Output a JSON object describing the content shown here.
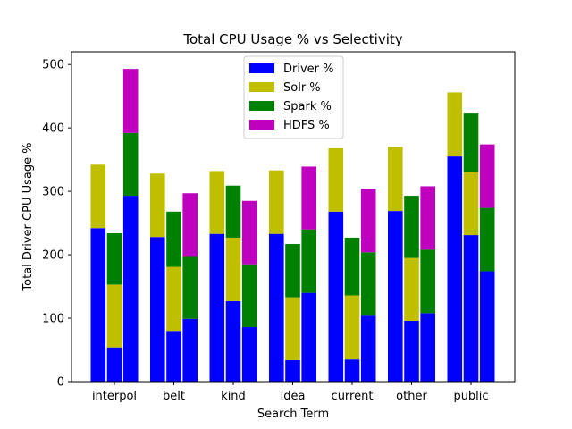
{
  "chart_data": {
    "type": "bar",
    "stacked": true,
    "title": "Total CPU Usage % vs Selectivity",
    "xlabel": "Search Term",
    "ylabel": "Total Driver CPU Usage %",
    "ylim": [
      0,
      520
    ],
    "yticks": [
      0,
      100,
      200,
      300,
      400,
      500
    ],
    "categories": [
      "interpol",
      "belt",
      "kind",
      "idea",
      "current",
      "other",
      "public"
    ],
    "bars_per_category": 3,
    "legend_placement": "top-center",
    "series": [
      {
        "name": "Driver %",
        "color": "#0000ff",
        "values": [
          [
            242,
            54,
            293
          ],
          [
            228,
            80,
            99
          ],
          [
            233,
            127,
            86
          ],
          [
            233,
            34,
            140
          ],
          [
            268,
            35,
            104
          ],
          [
            269,
            96,
            108
          ],
          [
            355,
            231,
            174
          ]
        ]
      },
      {
        "name": "Solr %",
        "color": "#bfbf00",
        "values": [
          [
            100,
            99,
            0
          ],
          [
            100,
            101,
            0
          ],
          [
            99,
            100,
            0
          ],
          [
            100,
            99,
            0
          ],
          [
            100,
            101,
            0
          ],
          [
            101,
            99,
            0
          ],
          [
            101,
            99,
            0
          ]
        ]
      },
      {
        "name": "Spark %",
        "color": "#008000",
        "values": [
          [
            0,
            81,
            99
          ],
          [
            0,
            87,
            99
          ],
          [
            0,
            82,
            99
          ],
          [
            0,
            84,
            100
          ],
          [
            0,
            91,
            100
          ],
          [
            0,
            98,
            100
          ],
          [
            0,
            94,
            100
          ]
        ]
      },
      {
        "name": "HDFS %",
        "color": "#bf00bf",
        "values": [
          [
            0,
            0,
            101
          ],
          [
            0,
            0,
            99
          ],
          [
            0,
            0,
            100
          ],
          [
            0,
            0,
            99
          ],
          [
            0,
            0,
            100
          ],
          [
            0,
            0,
            100
          ],
          [
            0,
            0,
            100
          ]
        ]
      }
    ]
  }
}
